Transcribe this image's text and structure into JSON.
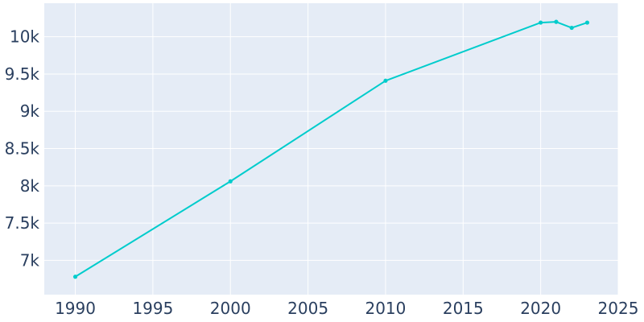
{
  "chart_data": {
    "type": "line",
    "title": "",
    "xlabel": "",
    "ylabel": "",
    "x_tick_labels": [
      "1990",
      "1995",
      "2000",
      "2005",
      "2010",
      "2015",
      "2020",
      "2025"
    ],
    "x_ticks": [
      1990,
      1995,
      2000,
      2005,
      2010,
      2015,
      2020,
      2025
    ],
    "y_tick_labels": [
      "7k",
      "7.5k",
      "8k",
      "8.5k",
      "9k",
      "9.5k",
      "10k"
    ],
    "y_ticks": [
      7000,
      7500,
      8000,
      8500,
      9000,
      9500,
      10000
    ],
    "xlim": [
      1988,
      2025
    ],
    "ylim": [
      6540,
      10450
    ],
    "grid": true,
    "legend": "none",
    "series": [
      {
        "x": [
          1990,
          2000,
          2010,
          2020,
          2021,
          2022,
          2023
        ],
        "values": [
          6780,
          8060,
          9410,
          10190,
          10200,
          10120,
          10190
        ]
      }
    ],
    "colors": {
      "line": "#00cccc",
      "plot_background": "#e5ecf6",
      "grid": "#ffffff",
      "text": "#2a3f5f"
    }
  }
}
